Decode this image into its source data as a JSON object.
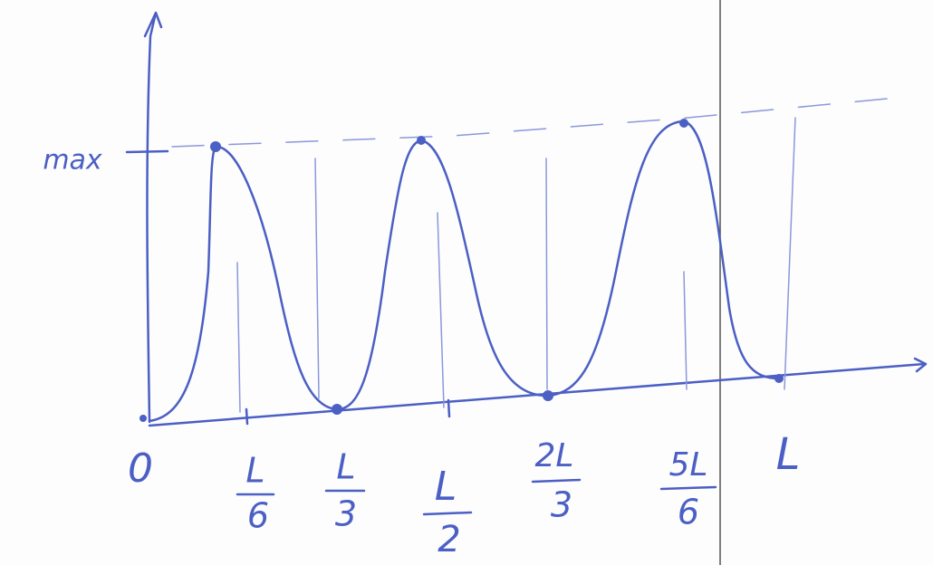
{
  "y_axis": {
    "max_label": "max"
  },
  "x_axis": {
    "origin_label": "0",
    "ticks": [
      {
        "numerator": "L",
        "denominator": "6"
      },
      {
        "numerator": "L",
        "denominator": "3"
      },
      {
        "numerator": "L",
        "denominator": "2"
      },
      {
        "numerator": "2L",
        "denominator": "3"
      },
      {
        "numerator": "5L",
        "denominator": "6"
      }
    ],
    "end_label": "L"
  }
}
